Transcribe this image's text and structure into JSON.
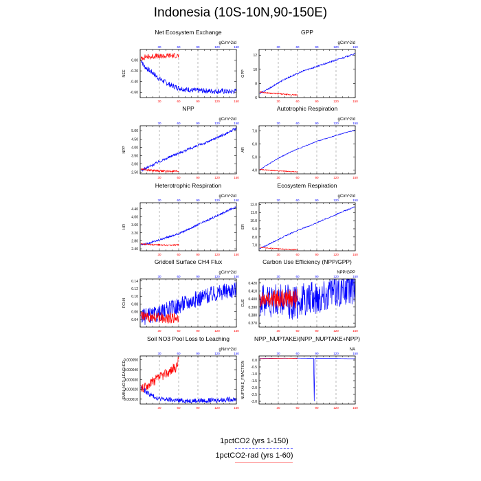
{
  "title": "Indonesia (10S-10N,90-150E)",
  "colors": {
    "series1": "#0000ff",
    "series2": "#ff0000",
    "grid": "#8c8c8c"
  },
  "legend": {
    "series1": "1pctCO2 (yrs 1-150)",
    "series2": "1pctCO2-rad (yrs 1-60)"
  },
  "chart_data": [
    {
      "type": "line",
      "title": "Net Ecosystem Exchange",
      "ylabel": "NEE",
      "units": "gC/m^2/d",
      "xlim": [
        0,
        150
      ],
      "ylim": [
        -0.7,
        0.2
      ],
      "yticks": [
        0.0,
        -0.2,
        -0.4,
        -0.6
      ],
      "ytick_labels": [
        "0.00",
        "-0.20",
        "-0.40",
        "-0.60"
      ],
      "xticks_top": [
        30,
        60,
        90,
        120,
        150
      ],
      "xticks_bottom": [
        30,
        60,
        90,
        120,
        150
      ],
      "series": [
        {
          "x": [
            1,
            3,
            5,
            7,
            10,
            15,
            20,
            25,
            30,
            35,
            40,
            45,
            50,
            55,
            60,
            65,
            70,
            75,
            80,
            90,
            100,
            110,
            120,
            130,
            140,
            150
          ],
          "y": [
            0.0,
            -0.02,
            -0.1,
            -0.12,
            -0.15,
            -0.2,
            -0.24,
            -0.3,
            -0.35,
            -0.38,
            -0.42,
            -0.45,
            -0.48,
            -0.5,
            -0.52,
            -0.53,
            -0.55,
            -0.55,
            -0.56,
            -0.57,
            -0.57,
            -0.58,
            -0.58,
            -0.58,
            -0.59,
            -0.58
          ],
          "noise": 0.05,
          "color_key": "series1"
        },
        {
          "x": [
            1,
            5,
            10,
            15,
            20,
            25,
            30,
            35,
            40,
            45,
            50,
            55,
            60
          ],
          "y": [
            0.02,
            0.05,
            0.07,
            0.06,
            0.07,
            0.08,
            0.06,
            0.08,
            0.07,
            0.09,
            0.08,
            0.09,
            0.08
          ],
          "noise": 0.05,
          "color_key": "series2"
        }
      ]
    },
    {
      "type": "line",
      "title": "GPP",
      "ylabel": "GPP",
      "units": "gC/m^2/d",
      "xlim": [
        0,
        150
      ],
      "ylim": [
        6,
        12.8
      ],
      "yticks": [
        6,
        8,
        10,
        12
      ],
      "ytick_labels": [
        "6",
        "8",
        "10",
        "12"
      ],
      "xticks_top": [
        30,
        60,
        90,
        120,
        150
      ],
      "xticks_bottom": [
        30,
        60,
        90,
        120,
        150
      ],
      "series": [
        {
          "x": [
            1,
            10,
            20,
            30,
            40,
            50,
            60,
            70,
            80,
            90,
            100,
            110,
            120,
            130,
            140,
            150
          ],
          "y": [
            6.6,
            7.0,
            7.5,
            8.1,
            8.6,
            9.0,
            9.4,
            9.8,
            10.1,
            10.4,
            10.7,
            11.0,
            11.3,
            11.6,
            11.9,
            12.2
          ],
          "noise": 0.1,
          "color_key": "series1"
        },
        {
          "x": [
            1,
            10,
            20,
            30,
            40,
            50,
            60
          ],
          "y": [
            6.8,
            6.7,
            6.6,
            6.55,
            6.45,
            6.4,
            6.35
          ],
          "noise": 0.08,
          "color_key": "series2"
        }
      ]
    },
    {
      "type": "line",
      "title": "NPP",
      "ylabel": "NPP",
      "units": "gC/m^2/d",
      "xlim": [
        0,
        150
      ],
      "ylim": [
        2.4,
        5.3
      ],
      "yticks": [
        2.5,
        3.0,
        3.5,
        4.0,
        4.5,
        5.0
      ],
      "ytick_labels": [
        "2.50",
        "3.00",
        "3.50",
        "4.00",
        "4.50",
        "5.00"
      ],
      "xticks_top": [
        30,
        60,
        90,
        120,
        150
      ],
      "xticks_bottom": [
        30,
        60,
        90,
        120,
        150
      ],
      "series": [
        {
          "x": [
            1,
            10,
            20,
            30,
            40,
            50,
            60,
            70,
            80,
            90,
            100,
            110,
            120,
            130,
            140,
            150
          ],
          "y": [
            2.6,
            2.75,
            2.95,
            3.15,
            3.3,
            3.5,
            3.65,
            3.8,
            3.95,
            4.1,
            4.25,
            4.4,
            4.6,
            4.75,
            4.95,
            5.15
          ],
          "noise": 0.08,
          "color_key": "series1"
        },
        {
          "x": [
            1,
            10,
            20,
            30,
            40,
            50,
            60
          ],
          "y": [
            2.7,
            2.65,
            2.6,
            2.58,
            2.55,
            2.55,
            2.55
          ],
          "noise": 0.06,
          "color_key": "series2"
        }
      ]
    },
    {
      "type": "line",
      "title": "Autotrophic Respiration",
      "ylabel": "AR",
      "units": "gC/m^2/d",
      "xlim": [
        0,
        150
      ],
      "ylim": [
        3.7,
        7.4
      ],
      "yticks": [
        4.0,
        5.0,
        6.0,
        7.0
      ],
      "ytick_labels": [
        "4.0",
        "5.0",
        "6.0",
        "7.0"
      ],
      "xticks_top": [
        30,
        60,
        90,
        120,
        150
      ],
      "xticks_bottom": [
        30,
        60,
        90,
        120,
        150
      ],
      "series": [
        {
          "x": [
            1,
            10,
            20,
            30,
            40,
            50,
            60,
            70,
            80,
            90,
            100,
            110,
            120,
            130,
            140,
            150
          ],
          "y": [
            4.0,
            4.3,
            4.6,
            4.9,
            5.15,
            5.4,
            5.6,
            5.8,
            6.0,
            6.2,
            6.35,
            6.5,
            6.65,
            6.8,
            6.95,
            7.05
          ],
          "noise": 0.03,
          "color_key": "series1"
        },
        {
          "x": [
            1,
            10,
            20,
            30,
            40,
            50,
            60
          ],
          "y": [
            4.05,
            4.0,
            3.95,
            3.93,
            3.9,
            3.88,
            3.85
          ],
          "noise": 0.03,
          "color_key": "series2"
        }
      ]
    },
    {
      "type": "line",
      "title": "Heterotrophic Respiration",
      "ylabel": "HR",
      "units": "gC/m^2/d",
      "xlim": [
        0,
        150
      ],
      "ylim": [
        2.3,
        4.7
      ],
      "yticks": [
        2.4,
        2.8,
        3.2,
        3.6,
        4.0,
        4.4
      ],
      "ytick_labels": [
        "2.40",
        "2.80",
        "3.20",
        "3.60",
        "4.00",
        "4.40"
      ],
      "xticks_top": [
        30,
        60,
        90,
        120,
        150
      ],
      "xticks_bottom": [
        30,
        60,
        90,
        120,
        150
      ],
      "series": [
        {
          "x": [
            1,
            10,
            20,
            30,
            40,
            50,
            60,
            70,
            80,
            90,
            100,
            110,
            120,
            130,
            140,
            150
          ],
          "y": [
            2.6,
            2.65,
            2.75,
            2.85,
            2.95,
            3.05,
            3.15,
            3.3,
            3.45,
            3.6,
            3.75,
            3.9,
            4.05,
            4.2,
            4.35,
            4.5
          ],
          "noise": 0.05,
          "color_key": "series1"
        },
        {
          "x": [
            1,
            10,
            20,
            30,
            40,
            50,
            60
          ],
          "y": [
            2.65,
            2.62,
            2.6,
            2.6,
            2.58,
            2.58,
            2.6
          ],
          "noise": 0.03,
          "color_key": "series2"
        }
      ]
    },
    {
      "type": "line",
      "title": "Ecosystem Respiration",
      "ylabel": "ER",
      "units": "gC/m^2/d",
      "xlim": [
        0,
        150
      ],
      "ylim": [
        6.3,
        12.2
      ],
      "yticks": [
        7.0,
        8.0,
        9.0,
        10.0,
        11.0,
        12.0
      ],
      "ytick_labels": [
        "7.0",
        "8.0",
        "9.0",
        "10.0",
        "11.0",
        "12.0"
      ],
      "xticks_top": [
        30,
        60,
        90,
        120,
        150
      ],
      "xticks_bottom": [
        30,
        60,
        90,
        120,
        150
      ],
      "series": [
        {
          "x": [
            1,
            10,
            20,
            30,
            40,
            50,
            60,
            70,
            80,
            90,
            100,
            110,
            120,
            130,
            140,
            150
          ],
          "y": [
            6.6,
            6.9,
            7.3,
            7.7,
            8.1,
            8.45,
            8.8,
            9.1,
            9.4,
            9.75,
            10.1,
            10.4,
            10.75,
            11.1,
            11.4,
            11.7
          ],
          "noise": 0.06,
          "color_key": "series1"
        },
        {
          "x": [
            1,
            10,
            20,
            30,
            40,
            50,
            60
          ],
          "y": [
            6.75,
            6.65,
            6.6,
            6.55,
            6.5,
            6.45,
            6.45
          ],
          "noise": 0.05,
          "color_key": "series2"
        }
      ]
    },
    {
      "type": "line",
      "title": "Gridcell Surface CH4 Flux",
      "ylabel": "FCH4",
      "units": "gC/m^2/d",
      "xlim": [
        0,
        150
      ],
      "ylim": [
        0.02,
        0.145
      ],
      "yticks": [
        0.04,
        0.06,
        0.08,
        0.1,
        0.12,
        0.14
      ],
      "ytick_labels": [
        "0.04",
        "0.06",
        "0.08",
        "0.10",
        "0.12",
        "0.14"
      ],
      "xticks_top": [
        30,
        60,
        90,
        120,
        150
      ],
      "xticks_bottom": [
        30,
        60,
        90,
        120,
        150
      ],
      "series": [
        {
          "x": [
            1,
            10,
            20,
            30,
            40,
            50,
            60,
            70,
            80,
            90,
            100,
            110,
            120,
            130,
            140,
            150
          ],
          "y": [
            0.045,
            0.048,
            0.05,
            0.055,
            0.062,
            0.07,
            0.076,
            0.083,
            0.088,
            0.094,
            0.1,
            0.104,
            0.108,
            0.112,
            0.116,
            0.118
          ],
          "noise": 0.022,
          "color_key": "series1"
        },
        {
          "x": [
            1,
            10,
            20,
            30,
            40,
            50,
            60
          ],
          "y": [
            0.048,
            0.046,
            0.045,
            0.045,
            0.044,
            0.044,
            0.044
          ],
          "noise": 0.014,
          "color_key": "series2"
        }
      ]
    },
    {
      "type": "line",
      "title": "Carbon Use Efficiency (NPP/GPP)",
      "ylabel": "CUE",
      "units": "NPP/GPP",
      "xlim": [
        0,
        150
      ],
      "ylim": [
        0.365,
        0.425
      ],
      "yticks": [
        0.37,
        0.38,
        0.39,
        0.4,
        0.41,
        0.42
      ],
      "ytick_labels": [
        "0.370",
        "0.380",
        "0.390",
        "0.400",
        "0.410",
        "0.420"
      ],
      "xticks_top": [
        30,
        60,
        90,
        120,
        150
      ],
      "xticks_bottom": [
        30,
        60,
        90,
        120,
        150
      ],
      "series": [
        {
          "x": [
            1,
            10,
            20,
            30,
            40,
            50,
            60,
            70,
            80,
            90,
            100,
            110,
            120,
            130,
            140,
            150
          ],
          "y": [
            0.398,
            0.399,
            0.398,
            0.397,
            0.396,
            0.396,
            0.397,
            0.398,
            0.4,
            0.403,
            0.406,
            0.409,
            0.411,
            0.413,
            0.414,
            0.415
          ],
          "noise": 0.022,
          "color_key": "series1"
        },
        {
          "x": [
            1,
            10,
            20,
            30,
            40,
            50,
            60
          ],
          "y": [
            0.4,
            0.402,
            0.401,
            0.401,
            0.401,
            0.4,
            0.401
          ],
          "noise": 0.012,
          "color_key": "series2"
        }
      ]
    },
    {
      "type": "line",
      "title": "Soil NO3 Pool Loss to Leaching",
      "ylabel": "SMIN_NO3_LEACHED",
      "units": "gN/m^2/d",
      "xlim": [
        0,
        150
      ],
      "ylim": [
        5e-06,
        5.4e-05
      ],
      "yticks": [
        1e-05,
        2e-05,
        3e-05,
        4e-05,
        5e-05
      ],
      "ytick_labels": [
        "0.000010",
        "0.000020",
        "0.000030",
        "0.000040",
        "0.000050"
      ],
      "xticks_top": [
        30,
        60,
        90,
        120,
        150
      ],
      "xticks_bottom": [
        30,
        60,
        90,
        120,
        150
      ],
      "series": [
        {
          "x": [
            1,
            5,
            10,
            15,
            20,
            25,
            30,
            40,
            50,
            60,
            70,
            80,
            90,
            100,
            110,
            120,
            130,
            140,
            150
          ],
          "y": [
            2.2e-05,
            2e-05,
            1.7e-05,
            1.5e-05,
            1.3e-05,
            1.2e-05,
            1.05e-05,
            9.5e-06,
            9e-06,
            8.5e-06,
            8.5e-06,
            8.5e-06,
            8.5e-06,
            8.5e-06,
            8.8e-06,
            9e-06,
            9.5e-06,
            9.8e-06,
            1e-05
          ],
          "noise": 2.5e-06,
          "color_key": "series1"
        },
        {
          "x": [
            1,
            10,
            20,
            30,
            40,
            50,
            55,
            58,
            60
          ],
          "y": [
            2e-05,
            2.4e-05,
            2.8e-05,
            3.2e-05,
            3.6e-05,
            4e-05,
            4.2e-05,
            4.5e-05,
            5.3e-05
          ],
          "noise": 5e-06,
          "color_key": "series2"
        }
      ]
    },
    {
      "type": "line",
      "title": "NPP_NUPTAKE/(NPP_NUPTAKE+NPP)",
      "ylabel": "NUPTAKE_FRACTION",
      "units": "NA",
      "xlim": [
        0,
        150
      ],
      "ylim": [
        -3.2,
        0.3
      ],
      "yticks": [
        0.0,
        -0.5,
        -1.0,
        -1.5,
        -2.0,
        -2.5,
        -3.0
      ],
      "ytick_labels": [
        "0.0",
        "-0.5",
        "-1.0",
        "-1.5",
        "-2.0",
        "-2.5",
        "-3.0"
      ],
      "xticks_top": [
        30,
        60,
        90,
        120,
        150
      ],
      "xticks_bottom": [
        30,
        60,
        90,
        120,
        150
      ],
      "series": [
        {
          "x": [
            1,
            20,
            40,
            60,
            80,
            85,
            86,
            87,
            88,
            89,
            90,
            100,
            120,
            140,
            150
          ],
          "y": [
            0.12,
            0.13,
            0.13,
            0.14,
            0.13,
            0.13,
            -3.0,
            0.12,
            0.13,
            0.13,
            0.13,
            0.12,
            0.12,
            0.1,
            0.1
          ],
          "noise": 0.0,
          "color_key": "series1"
        },
        {
          "x": [
            1,
            20,
            40,
            60
          ],
          "y": [
            0.1,
            0.12,
            0.14,
            0.12
          ],
          "noise": 0.0,
          "color_key": "series2"
        }
      ]
    }
  ]
}
